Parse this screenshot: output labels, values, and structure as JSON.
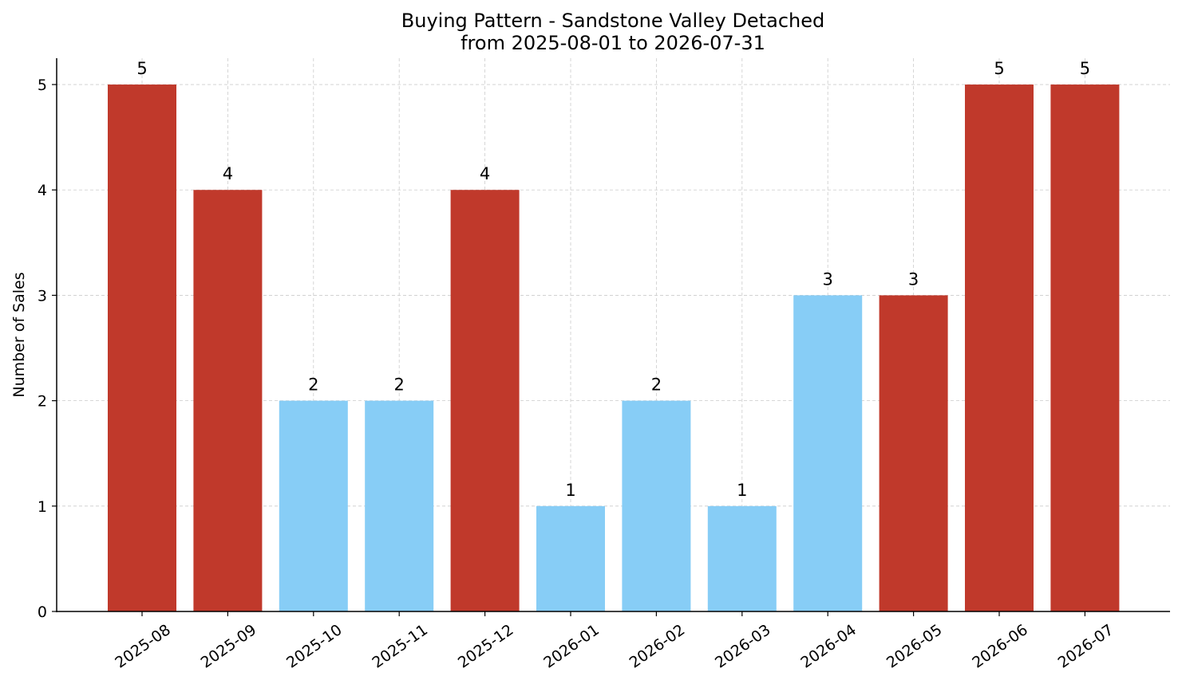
{
  "chart_data": {
    "type": "bar",
    "title": "Buying Pattern - Sandstone Valley Detached",
    "subtitle": "from 2025-08-01 to 2026-07-31",
    "xlabel": "",
    "ylabel": "Number of Sales",
    "categories": [
      "2025-08",
      "2025-09",
      "2025-10",
      "2025-11",
      "2025-12",
      "2026-01",
      "2026-02",
      "2026-03",
      "2026-04",
      "2026-05",
      "2026-06",
      "2026-07"
    ],
    "values": [
      5,
      4,
      2,
      2,
      4,
      1,
      2,
      1,
      3,
      3,
      5,
      5
    ],
    "bar_colors": [
      "#c0392b",
      "#c0392b",
      "#87cdf6",
      "#87cdf6",
      "#c0392b",
      "#87cdf6",
      "#87cdf6",
      "#87cdf6",
      "#87cdf6",
      "#c0392b",
      "#c0392b",
      "#c0392b"
    ],
    "ylim": [
      0,
      5.25
    ],
    "yticks": [
      0,
      1,
      2,
      3,
      4,
      5
    ],
    "grid": true,
    "legend": "none"
  }
}
